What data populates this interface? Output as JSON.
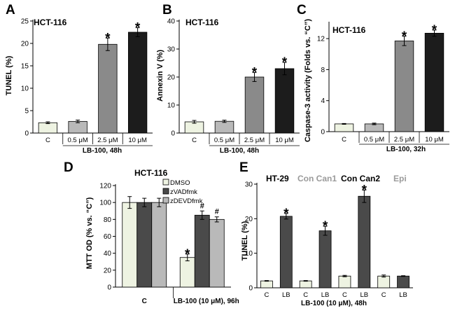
{
  "colors": {
    "light": "#eef3e2",
    "lightgray": "#b9b9b9",
    "gray": "#8a8a8a",
    "dark": "#4a4a4a",
    "black": "#1c1c1c",
    "label_gray": "#9a9a9a"
  },
  "chart_data": [
    {
      "panel": "A",
      "type": "bar",
      "title": "HCT-116",
      "ylabel": "TUNEL (%)",
      "xlabel": "LB-100, 48h",
      "ylim": [
        0,
        25
      ],
      "yticks": [
        0,
        5,
        10,
        15,
        20,
        25
      ],
      "categories": [
        "C",
        "0.5 μM",
        "2.5 μM",
        "10 μM"
      ],
      "values": [
        2.3,
        2.6,
        19.8,
        22.5
      ],
      "errors": [
        0.2,
        0.3,
        1.4,
        1.0
      ],
      "marks": [
        "",
        "",
        "*",
        "*"
      ]
    },
    {
      "panel": "B",
      "type": "bar",
      "title": "HCT-116",
      "ylabel": "Annexin V (%)",
      "xlabel": "LB-100, 48h",
      "ylim": [
        0,
        40
      ],
      "yticks": [
        0,
        10,
        20,
        30,
        40
      ],
      "categories": [
        "C",
        "0.5 μM",
        "2.5 μM",
        "10 μM"
      ],
      "values": [
        4.0,
        4.2,
        20.0,
        23.0
      ],
      "errors": [
        0.5,
        0.4,
        1.6,
        2.2
      ],
      "marks": [
        "",
        "",
        "*",
        "*"
      ]
    },
    {
      "panel": "C",
      "type": "bar",
      "title": "HCT-116",
      "ylabel": "Caspase-3 activity (Folds vs. “C”)",
      "xlabel": "LB-100, 32h",
      "ylim": [
        0,
        14
      ],
      "yticks": [
        0,
        4,
        8,
        12
      ],
      "categories": [
        "C",
        "0.5 μM",
        "2.5 μM",
        "10 μM"
      ],
      "values": [
        1.0,
        1.0,
        11.7,
        12.7
      ],
      "errors": [
        0.05,
        0.1,
        0.6,
        0.4
      ],
      "marks": [
        "",
        "",
        "*",
        "*"
      ]
    },
    {
      "panel": "D",
      "type": "bar",
      "title": "HCT-116",
      "ylabel": "MTT OD (% vs. “C”)",
      "xlabel": "LB-100 (10 μM), 96h",
      "ylim": [
        0,
        120
      ],
      "yticks": [
        0,
        20,
        40,
        60,
        80,
        100,
        120
      ],
      "categories": [
        "C",
        "LB-100 (10 μM), 96h"
      ],
      "series": [
        {
          "name": "DMSO",
          "values": [
            100,
            35
          ],
          "errors": [
            7,
            4
          ],
          "marks": [
            "",
            "*"
          ]
        },
        {
          "name": "zVADfmk",
          "values": [
            100,
            85
          ],
          "errors": [
            5,
            5
          ],
          "marks": [
            "",
            "#"
          ]
        },
        {
          "name": "zDEVDfmk",
          "values": [
            100,
            80
          ],
          "errors": [
            5,
            3
          ],
          "marks": [
            "",
            "#"
          ]
        }
      ]
    },
    {
      "panel": "E",
      "type": "bar",
      "title_parts": [
        "HT-29",
        "Con Can1",
        "Con Can2",
        "Epi"
      ],
      "ylabel": "TUNEL (%)",
      "xlabel": "LB-100 (10 μM), 48h",
      "ylim": [
        0,
        30
      ],
      "yticks": [
        0,
        10,
        20,
        30
      ],
      "categories": [
        "C",
        "LB",
        "C",
        "LB",
        "C",
        "LB",
        "C",
        "LB"
      ],
      "values": [
        2.0,
        20.7,
        2.0,
        16.5,
        3.4,
        26.5,
        3.4,
        3.4
      ],
      "errors": [
        0.1,
        0.8,
        0.1,
        1.3,
        0.2,
        1.8,
        0.3,
        0.1
      ],
      "marks": [
        "",
        "*",
        "",
        "*",
        "",
        "*",
        "",
        ""
      ]
    }
  ]
}
